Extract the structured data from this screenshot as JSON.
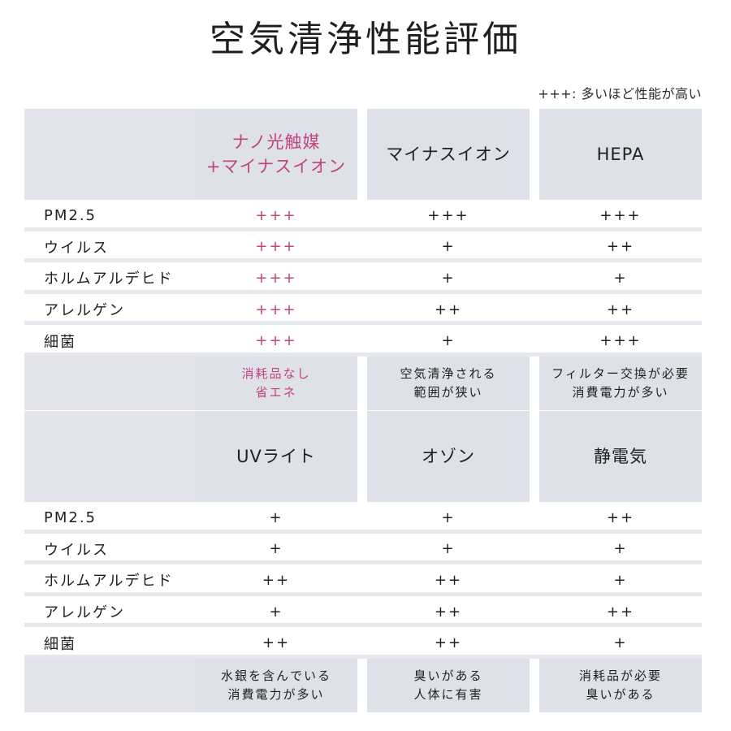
{
  "title": "空気清浄性能評価",
  "legend": "+++: 多いほど性能が高い",
  "tables": [
    {
      "columns": [
        {
          "lines": [
            "ナノ光触媒",
            "+マイナスイオン"
          ],
          "highlight": true
        },
        {
          "lines": [
            "マイナスイオン"
          ],
          "highlight": false
        },
        {
          "lines": [
            "HEPA"
          ],
          "highlight": false
        }
      ],
      "rows": [
        {
          "label": "PM2.5",
          "values": [
            "+++",
            "+++",
            "+++"
          ]
        },
        {
          "label": "ウイルス",
          "values": [
            "+++",
            "+",
            "++"
          ]
        },
        {
          "label": "ホルムアルデヒド",
          "values": [
            "+++",
            "+",
            "+"
          ]
        },
        {
          "label": "アレルゲン",
          "values": [
            "+++",
            "++",
            "++"
          ]
        },
        {
          "label": "細菌",
          "values": [
            "+++",
            "+",
            "+++"
          ]
        }
      ],
      "notes": [
        [
          "消耗品なし",
          "省エネ"
        ],
        [
          "空気清浄される",
          "範囲が狭い"
        ],
        [
          "フィルター交換が必要",
          "消費電力が多い"
        ]
      ]
    },
    {
      "columns": [
        {
          "lines": [
            "UVライト"
          ],
          "highlight": false
        },
        {
          "lines": [
            "オゾン"
          ],
          "highlight": false
        },
        {
          "lines": [
            "静電気"
          ],
          "highlight": false
        }
      ],
      "rows": [
        {
          "label": "PM2.5",
          "values": [
            "+",
            "+",
            "++"
          ]
        },
        {
          "label": "ウイルス",
          "values": [
            "+",
            "+",
            "+"
          ]
        },
        {
          "label": "ホルムアルデヒド",
          "values": [
            "++",
            "++",
            "+"
          ]
        },
        {
          "label": "アレルゲン",
          "values": [
            "+",
            "++",
            "++"
          ]
        },
        {
          "label": "細菌",
          "values": [
            "++",
            "++",
            "+"
          ]
        }
      ],
      "notes": [
        [
          "水銀を含んでいる",
          "消費電力が多い"
        ],
        [
          "臭いがある",
          "人体に有害"
        ],
        [
          "消耗品が必要",
          "臭いがある"
        ]
      ]
    }
  ],
  "colors": {
    "highlight": "#c2447f",
    "cell_bg": "#dfe1e8"
  }
}
